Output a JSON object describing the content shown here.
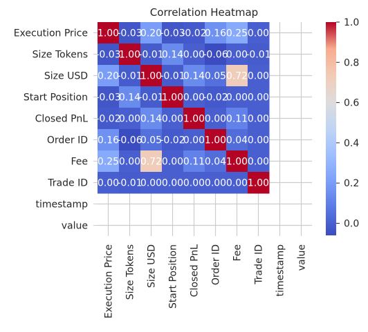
{
  "chart_data": {
    "type": "heatmap",
    "title": "Correlation Heatmap",
    "xlabel": "",
    "ylabel": "",
    "labels": [
      "Execution Price",
      "Size Tokens",
      "Size USD",
      "Start Position",
      "Closed PnL",
      "Order ID",
      "Fee",
      "Trade ID",
      "timestamp",
      "value"
    ],
    "n_valued": 8,
    "matrix": [
      [
        1.0,
        -0.03,
        0.2,
        -0.03,
        -0.02,
        0.16,
        0.25,
        0.0
      ],
      [
        -0.03,
        1.0,
        -0.01,
        0.14,
        0.0,
        -0.06,
        0.0,
        -0.01
      ],
      [
        0.2,
        -0.01,
        1.0,
        -0.01,
        0.14,
        0.05,
        0.72,
        0.0
      ],
      [
        -0.03,
        0.14,
        -0.01,
        1.0,
        0.0,
        -0.02,
        0.0,
        0.0
      ],
      [
        -0.02,
        0.0,
        0.14,
        0.0,
        1.0,
        0.0,
        0.11,
        0.0
      ],
      [
        0.16,
        -0.06,
        0.05,
        -0.02,
        0.0,
        1.0,
        0.04,
        0.0
      ],
      [
        0.25,
        0.0,
        0.72,
        0.0,
        0.11,
        0.04,
        1.0,
        0.0
      ],
      [
        0.0,
        -0.01,
        0.0,
        0.0,
        0.0,
        0.0,
        0.0,
        1.0
      ]
    ],
    "cell_labels": [
      [
        "1.00",
        "-0.03",
        "0.20",
        "-0.03",
        "-0.02",
        "0.16",
        "0.25",
        "0.00"
      ],
      [
        "-0.03",
        "1.00",
        "-0.01",
        "0.14",
        "0.00",
        "-0.06",
        "0.00",
        "-0.01"
      ],
      [
        "0.20",
        "-0.01",
        "1.00",
        "-0.01",
        "0.14",
        "0.05",
        "0.72",
        "0.00"
      ],
      [
        "-0.03",
        "0.14",
        "-0.01",
        "1.00",
        "0.00",
        "-0.02",
        "0.00",
        "0.00"
      ],
      [
        "-0.02",
        "0.00",
        "0.14",
        "0.00",
        "1.00",
        "0.00",
        "0.11",
        "0.00"
      ],
      [
        "0.16",
        "-0.06",
        "0.05",
        "-0.02",
        "0.00",
        "1.00",
        "0.04",
        "0.00"
      ],
      [
        "0.25",
        "0.00",
        "0.72",
        "0.00",
        "0.11",
        "0.04",
        "1.00",
        "0.00"
      ],
      [
        "0.00",
        "-0.01",
        "0.00",
        "0.00",
        "0.00",
        "0.00",
        "0.00",
        "1.00"
      ]
    ],
    "colormap": "coolwarm",
    "vmin": -0.06,
    "vmax": 1.0,
    "colorbar_ticks": [
      0.0,
      0.2,
      0.4,
      0.6,
      0.8,
      1.0
    ],
    "colorbar_tick_labels": [
      "0.0",
      "0.2",
      "0.4",
      "0.6",
      "0.8",
      "1.0"
    ],
    "grid": true,
    "legend": "colorbar-right"
  }
}
